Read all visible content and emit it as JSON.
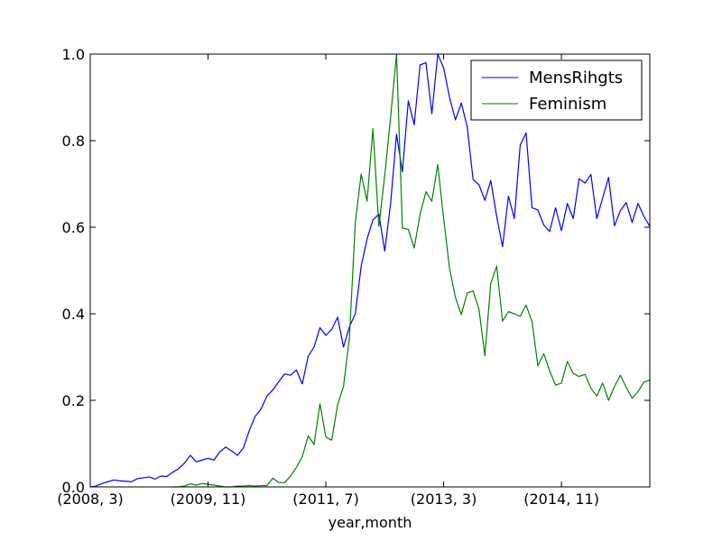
{
  "chart_data": {
    "type": "line",
    "title": "",
    "xlabel": "year,month",
    "ylabel": "",
    "x_tick_labels": [
      "(2008, 3)",
      "(2009, 11)",
      "(2011, 7)",
      "(2013, 3)",
      "(2014, 11)"
    ],
    "x_tick_positions": [
      "2008-03",
      "2009-11",
      "2011-07",
      "2013-03",
      "2014-11"
    ],
    "xlim": [
      "2008-03",
      "2016-02"
    ],
    "ylim": [
      0.0,
      1.0
    ],
    "y_ticks": [
      "0.0",
      "0.2",
      "0.4",
      "0.6",
      "0.8",
      "1.0"
    ],
    "y_tick_values": [
      0.0,
      0.2,
      0.4,
      0.6,
      0.8,
      1.0
    ],
    "grid": false,
    "legend": "top-right",
    "series": [
      {
        "name": "MensRihgts",
        "color": "#0000ff",
        "x": [
          "2008-03",
          "2008-04",
          "2008-05",
          "2008-06",
          "2008-07",
          "2008-08",
          "2008-09",
          "2008-10",
          "2008-11",
          "2008-12",
          "2009-01",
          "2009-02",
          "2009-03",
          "2009-04",
          "2009-05",
          "2009-06",
          "2009-07",
          "2009-08",
          "2009-09",
          "2009-10",
          "2009-11",
          "2009-12",
          "2010-01",
          "2010-02",
          "2010-03",
          "2010-04",
          "2010-05",
          "2010-06",
          "2010-07",
          "2010-08",
          "2010-09",
          "2010-10",
          "2010-11",
          "2010-12",
          "2011-01",
          "2011-02",
          "2011-03",
          "2011-04",
          "2011-05",
          "2011-06",
          "2011-07",
          "2011-08",
          "2011-09",
          "2011-10",
          "2011-11",
          "2011-12",
          "2012-01",
          "2012-02",
          "2012-03",
          "2012-04",
          "2012-05",
          "2012-06",
          "2012-07",
          "2012-08",
          "2012-09",
          "2012-10",
          "2012-11",
          "2012-12",
          "2013-01",
          "2013-02",
          "2013-03",
          "2013-04",
          "2013-05",
          "2013-06",
          "2013-07",
          "2013-08",
          "2013-09",
          "2013-10",
          "2013-11",
          "2013-12",
          "2014-01",
          "2014-02",
          "2014-03",
          "2014-04",
          "2014-05",
          "2014-06",
          "2014-07",
          "2014-08",
          "2014-09",
          "2014-10",
          "2014-11",
          "2014-12",
          "2015-01",
          "2015-02",
          "2015-03",
          "2015-04",
          "2015-05",
          "2015-06",
          "2015-07",
          "2015-08",
          "2015-09",
          "2015-10",
          "2015-11",
          "2015-12",
          "2016-01",
          "2016-02"
        ],
        "values": [
          0.0,
          0.002,
          0.008,
          0.012,
          0.016,
          0.014,
          0.013,
          0.012,
          0.019,
          0.021,
          0.023,
          0.018,
          0.025,
          0.024,
          0.034,
          0.042,
          0.055,
          0.073,
          0.058,
          0.062,
          0.066,
          0.062,
          0.081,
          0.092,
          0.083,
          0.073,
          0.09,
          0.13,
          0.163,
          0.18,
          0.21,
          0.224,
          0.243,
          0.261,
          0.258,
          0.27,
          0.238,
          0.302,
          0.323,
          0.368,
          0.35,
          0.364,
          0.392,
          0.323,
          0.37,
          0.4,
          0.51,
          0.573,
          0.617,
          0.63,
          0.545,
          0.655,
          0.815,
          0.728,
          0.892,
          0.837,
          0.975,
          0.98,
          0.862,
          1.0,
          0.968,
          0.9,
          0.848,
          0.887,
          0.832,
          0.71,
          0.698,
          0.662,
          0.708,
          0.625,
          0.555,
          0.672,
          0.62,
          0.79,
          0.818,
          0.645,
          0.64,
          0.605,
          0.59,
          0.645,
          0.592,
          0.655,
          0.62,
          0.712,
          0.702,
          0.722,
          0.62,
          0.668,
          0.715,
          0.603,
          0.638,
          0.657,
          0.611,
          0.655,
          0.625,
          0.602
        ]
      },
      {
        "name": "Feminism",
        "color": "#008000",
        "x": [
          "2009-05",
          "2009-06",
          "2009-07",
          "2009-08",
          "2009-09",
          "2009-10",
          "2009-11",
          "2009-12",
          "2010-01",
          "2010-02",
          "2010-03",
          "2010-04",
          "2010-05",
          "2010-06",
          "2010-07",
          "2010-08",
          "2010-09",
          "2010-10",
          "2010-11",
          "2010-12",
          "2011-01",
          "2011-02",
          "2011-03",
          "2011-04",
          "2011-05",
          "2011-06",
          "2011-07",
          "2011-08",
          "2011-09",
          "2011-10",
          "2011-11",
          "2011-12",
          "2012-01",
          "2012-02",
          "2012-03",
          "2012-04",
          "2012-05",
          "2012-06",
          "2012-07",
          "2012-08",
          "2012-09",
          "2012-10",
          "2012-11",
          "2012-12",
          "2013-01",
          "2013-02",
          "2013-03",
          "2013-04",
          "2013-05",
          "2013-06",
          "2013-07",
          "2013-08",
          "2013-09",
          "2013-10",
          "2013-11",
          "2013-12",
          "2014-01",
          "2014-02",
          "2014-03",
          "2014-04",
          "2014-05",
          "2014-06",
          "2014-07",
          "2014-08",
          "2014-09",
          "2014-10",
          "2014-11",
          "2014-12",
          "2015-01",
          "2015-02",
          "2015-03",
          "2015-04",
          "2015-05",
          "2015-06",
          "2015-07",
          "2015-08",
          "2015-09",
          "2015-10",
          "2015-11",
          "2015-12",
          "2016-01",
          "2016-02"
        ],
        "values": [
          0.0,
          0.0,
          0.002,
          0.007,
          0.004,
          0.008,
          0.006,
          0.004,
          0.002,
          0.0,
          0.0,
          0.002,
          0.002,
          0.003,
          0.002,
          0.003,
          0.003,
          0.02,
          0.01,
          0.01,
          0.025,
          0.045,
          0.07,
          0.118,
          0.098,
          0.192,
          0.115,
          0.108,
          0.19,
          0.232,
          0.345,
          0.61,
          0.723,
          0.66,
          0.828,
          0.602,
          0.72,
          0.855,
          1.0,
          0.598,
          0.595,
          0.552,
          0.63,
          0.682,
          0.66,
          0.745,
          0.62,
          0.505,
          0.438,
          0.398,
          0.448,
          0.453,
          0.41,
          0.303,
          0.47,
          0.51,
          0.383,
          0.405,
          0.4,
          0.394,
          0.42,
          0.382,
          0.28,
          0.308,
          0.268,
          0.235,
          0.24,
          0.29,
          0.262,
          0.255,
          0.26,
          0.228,
          0.21,
          0.24,
          0.2,
          0.232,
          0.258,
          0.23,
          0.205,
          0.22,
          0.242,
          0.247
        ]
      }
    ]
  }
}
